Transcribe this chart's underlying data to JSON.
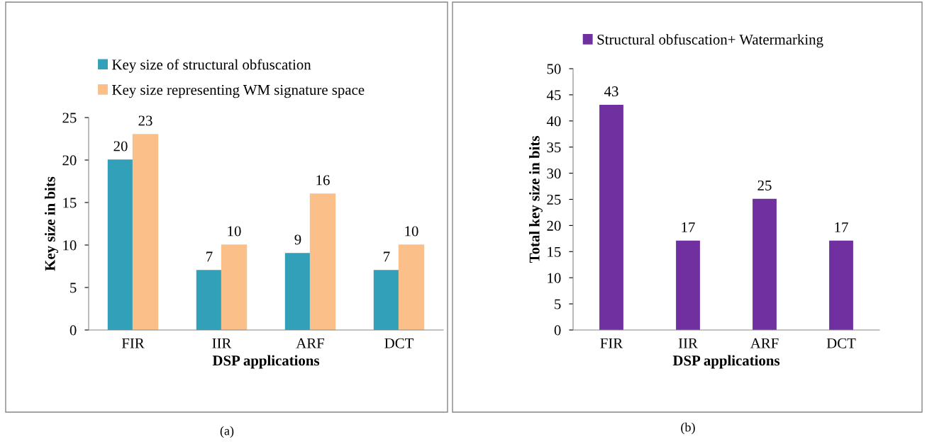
{
  "chart_data": [
    {
      "type": "bar",
      "categories": [
        "FIR",
        "IIR",
        "ARF",
        "DCT"
      ],
      "xlabel": "DSP applications",
      "ylabel": "Key size in bits",
      "series": [
        {
          "name": "Key size of structural obfuscation",
          "color": "#31a0b8",
          "values": [
            20,
            7,
            9,
            7
          ]
        },
        {
          "name": "Key size representing WM signature space",
          "color": "#fbc08a",
          "values": [
            23,
            10,
            16,
            10
          ]
        }
      ],
      "ylim": [
        0,
        25
      ],
      "yticks": [
        0,
        5,
        10,
        15,
        20,
        25
      ],
      "data_labels": true,
      "legend": "top",
      "grid": false,
      "annotations": [
        "(a)"
      ]
    },
    {
      "type": "bar",
      "categories": [
        "FIR",
        "IIR",
        "ARF",
        "DCT"
      ],
      "xlabel": "DSP applications",
      "ylabel": "Total key size in bits",
      "series": [
        {
          "name": "Structural obfuscation+ Watermarking",
          "color": "#7030a0",
          "values": [
            43,
            17,
            25,
            17
          ]
        }
      ],
      "ylim": [
        0,
        50
      ],
      "yticks": [
        0,
        5,
        10,
        15,
        20,
        25,
        30,
        35,
        40,
        45,
        50
      ],
      "data_labels": true,
      "legend": "top",
      "grid": false,
      "annotations": [
        "(b)"
      ]
    }
  ]
}
